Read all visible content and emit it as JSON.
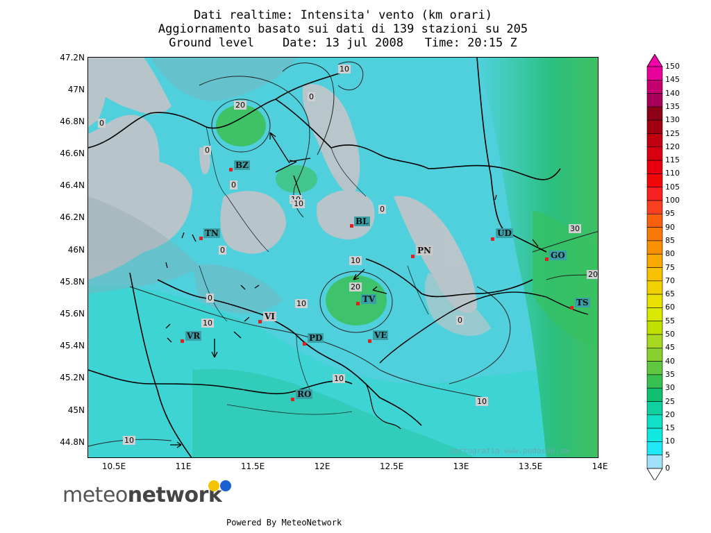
{
  "title": {
    "line1": "Dati realtime: Intensita' vento (km orari)",
    "line2": "Aggiornamento basato sui dati di 139 stazioni su 205",
    "line3": "Ground level    Date: 13 jul 2008   Time: 20:15 Z"
  },
  "axes": {
    "y_ticks": [
      "47.2N",
      "47N",
      "46.8N",
      "46.6N",
      "46.4N",
      "46.2N",
      "46N",
      "45.8N",
      "45.6N",
      "45.4N",
      "45.2N",
      "45N",
      "44.8N"
    ],
    "x_ticks": [
      "10.5E",
      "11E",
      "11.5E",
      "12E",
      "12.5E",
      "13E",
      "13.5E",
      "14E"
    ]
  },
  "colorbar": {
    "labels": [
      "150",
      "145",
      "140",
      "135",
      "130",
      "125",
      "120",
      "115",
      "110",
      "105",
      "100",
      "95",
      "90",
      "85",
      "80",
      "75",
      "70",
      "65",
      "60",
      "55",
      "50",
      "45",
      "40",
      "35",
      "30",
      "25",
      "20",
      "15",
      "10",
      "5",
      "0"
    ],
    "colors": [
      "#e8009a",
      "#c40070",
      "#a8005a",
      "#8c0018",
      "#a00010",
      "#c00010",
      "#d80010",
      "#e80010",
      "#f00808",
      "#f82020",
      "#f84020",
      "#f86010",
      "#f87808",
      "#f89000",
      "#f8a800",
      "#f8c000",
      "#f0d000",
      "#e8e000",
      "#d8e800",
      "#c0e000",
      "#a8d820",
      "#88d030",
      "#60c840",
      "#38c050",
      "#10c070",
      "#10d0a0",
      "#10e0c8",
      "#10e8e0",
      "#20e8f8",
      "#a0e0f8"
    ]
  },
  "cities": [
    {
      "code": "BZ"
    },
    {
      "code": "TN"
    },
    {
      "code": "BL"
    },
    {
      "code": "UD"
    },
    {
      "code": "PN"
    },
    {
      "code": "GO"
    },
    {
      "code": "TV"
    },
    {
      "code": "VI"
    },
    {
      "code": "TS"
    },
    {
      "code": "VR"
    },
    {
      "code": "PD"
    },
    {
      "code": "VE"
    },
    {
      "code": "RO"
    }
  ],
  "contour_labels": [
    "10",
    "0",
    "20",
    "0",
    "0",
    "0",
    "10",
    "0",
    "0",
    "0",
    "10",
    "20",
    "10",
    "0",
    "10",
    "10",
    "30",
    "20",
    "10",
    "10",
    "10",
    "0"
  ],
  "credits": {
    "cartografia": "cartografia  www.podos3d.sm",
    "logo_light": "meteo",
    "logo_bold": "network",
    "powered": "Powered By MeteoNetwork"
  },
  "colors": {
    "teal": "#4fd0dc",
    "relief_gray": "#c8c8c8",
    "green_core": "#40c860"
  }
}
